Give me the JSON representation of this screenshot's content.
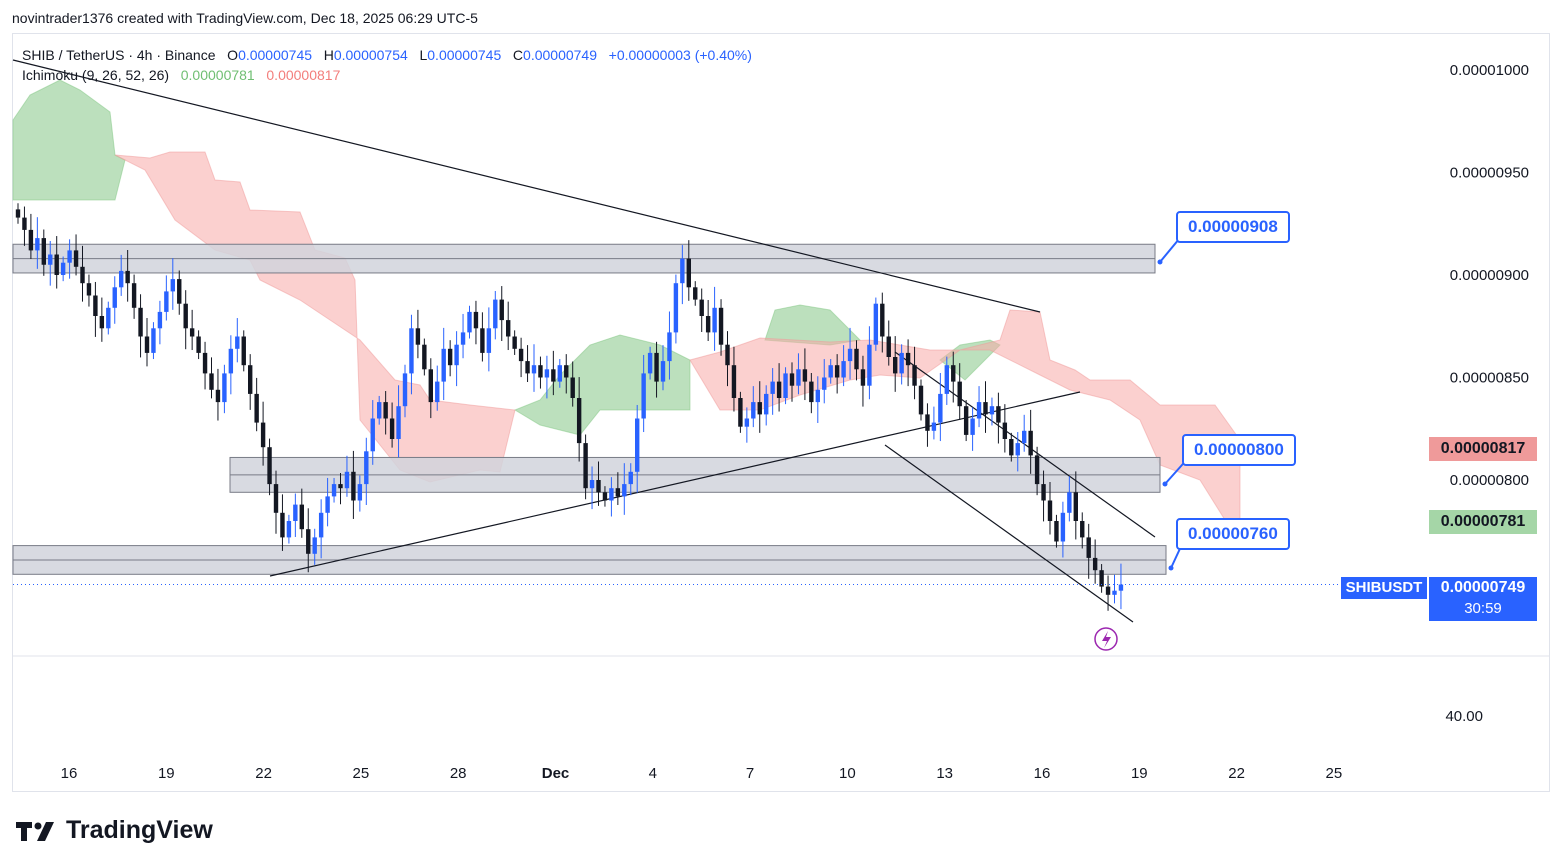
{
  "header": {
    "credit": "novintrader1376 created with TradingView.com, Dec 18, 2025 06:29 UTC-5"
  },
  "legend": {
    "symbol": "SHIB / TetherUS · 4h · Binance",
    "o_label": "O",
    "o": "0.00000745",
    "h_label": "H",
    "h": "0.00000754",
    "l_label": "L",
    "l": "0.00000745",
    "c_label": "C",
    "c": "0.00000749",
    "change": "+0.00000003 (+0.40%)",
    "ichimoku_label": "Ichimoku (9, 26, 52, 26)",
    "ichimoku_a": "0.00000781",
    "ichimoku_b": "0.00000817"
  },
  "price_axis": {
    "ticks": [
      "0.00001000",
      "0.00000950",
      "0.00000900",
      "0.00000850",
      "0.00000800"
    ],
    "lower_tick": "40.00"
  },
  "tags": {
    "senkou_b": "0.00000817",
    "senkou_a": "0.00000781",
    "symbol": "SHIBUSDT",
    "current": "0.00000749",
    "countdown": "30:59"
  },
  "callouts": [
    "0.00000908",
    "0.00000800",
    "0.00000760"
  ],
  "dates": [
    "16",
    "19",
    "22",
    "25",
    "28",
    "Dec",
    "4",
    "7",
    "10",
    "13",
    "16",
    "19",
    "22",
    "25"
  ],
  "brand": {
    "name": "TradingView"
  },
  "colors": {
    "up": "#2962ff",
    "down": "#131722",
    "cloud_bull": "#a5d6a7",
    "cloud_bear": "#f7a9a7",
    "zone": "#d1d4dc",
    "accent": "#2962ff",
    "tag_red": "#ef9a9a",
    "tag_green": "#a5d6a7"
  },
  "chart_data": {
    "type": "candlestick",
    "title": "SHIB / TetherUS · 4h · Binance",
    "y_range": [
      7.2e-06,
      1.02e-05
    ],
    "x_range_days": [
      14.8,
      25.5
    ],
    "last": {
      "open": 7.45e-06,
      "high": 7.54e-06,
      "low": 7.45e-06,
      "close": 7.49e-06
    },
    "closes": [
      9.28,
      9.22,
      9.12,
      9.18,
      9.05,
      9.1,
      9.0,
      9.06,
      9.12,
      9.04,
      8.96,
      8.9,
      8.8,
      8.74,
      8.84,
      8.94,
      9.02,
      8.96,
      8.84,
      8.7,
      8.62,
      8.74,
      8.82,
      8.92,
      8.98,
      8.86,
      8.74,
      8.7,
      8.62,
      8.52,
      8.44,
      8.38,
      8.52,
      8.64,
      8.7,
      8.56,
      8.42,
      8.28,
      8.16,
      7.98,
      7.84,
      7.72,
      7.8,
      7.88,
      7.76,
      7.64,
      7.72,
      7.84,
      7.92,
      7.98,
      7.96,
      8.04,
      7.9,
      7.98,
      8.14,
      8.3,
      8.38,
      8.3,
      8.2,
      8.36,
      8.52,
      8.74,
      8.66,
      8.54,
      8.38,
      8.48,
      8.64,
      8.56,
      8.66,
      8.72,
      8.82,
      8.74,
      8.62,
      8.74,
      8.88,
      8.78,
      8.7,
      8.64,
      8.58,
      8.52,
      8.56,
      8.5,
      8.54,
      8.48,
      8.56,
      8.5,
      8.4,
      8.18,
      7.96,
      8.0,
      7.94,
      7.9,
      7.96,
      7.92,
      7.98,
      8.04,
      8.3,
      8.52,
      8.62,
      8.48,
      8.58,
      8.72,
      8.96,
      9.08,
      8.94,
      8.88,
      8.8,
      8.72,
      8.84,
      8.66,
      8.56,
      8.4,
      8.26,
      8.3,
      8.38,
      8.32,
      8.42,
      8.48,
      8.4,
      8.52,
      8.46,
      8.54,
      8.48,
      8.38,
      8.44,
      8.5,
      8.56,
      8.5,
      8.58,
      8.64,
      8.54,
      8.46,
      8.66,
      8.86,
      8.7,
      8.6,
      8.52,
      8.62,
      8.56,
      8.46,
      8.32,
      8.24,
      8.28,
      8.42,
      8.56,
      8.48,
      8.36,
      8.22,
      8.3,
      8.38,
      8.32,
      8.36,
      8.28,
      8.2,
      8.12,
      8.18,
      8.24,
      8.12,
      7.98,
      7.9,
      7.8,
      7.7,
      7.84,
      7.94,
      7.8,
      7.72,
      7.62,
      7.56,
      7.48,
      7.44,
      7.46,
      7.49
    ],
    "horizontal_zones": [
      {
        "from": 9.01e-06,
        "to": 9.15e-06,
        "label": "0.00000908"
      },
      {
        "from": 7.94e-06,
        "to": 8.11e-06,
        "label": "0.00000800"
      },
      {
        "from": 7.54e-06,
        "to": 7.68e-06,
        "label": "0.00000760"
      }
    ],
    "indicator": "Ichimoku (9, 26, 52, 26)",
    "senkou_a": 7.81e-06,
    "senkou_b": 8.17e-06
  }
}
